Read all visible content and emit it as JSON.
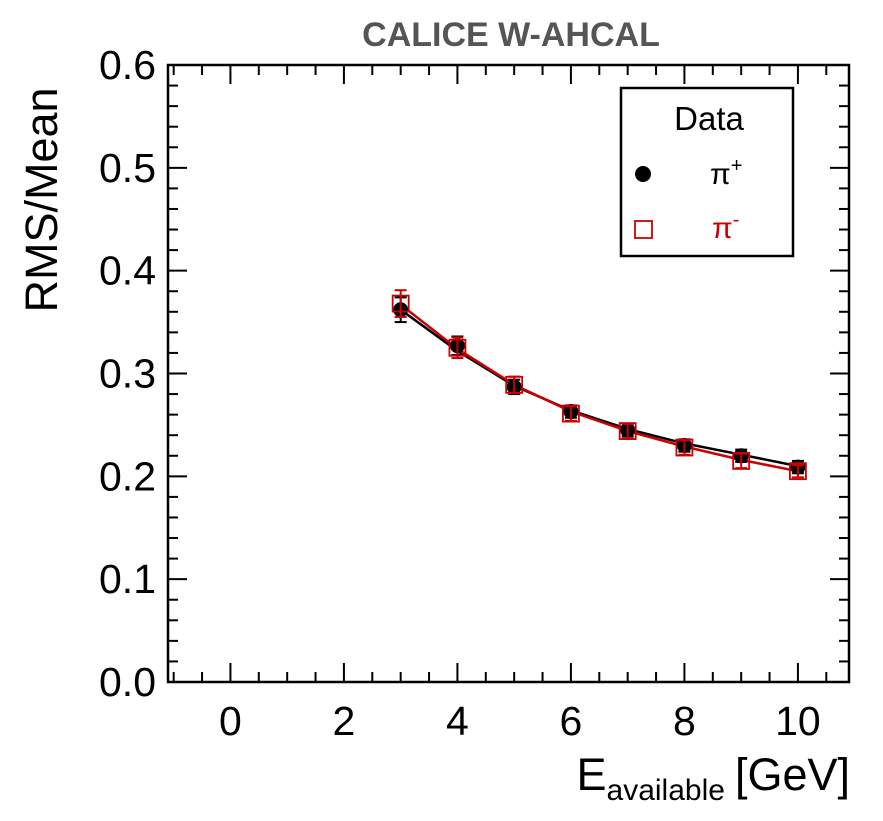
{
  "chart_data": {
    "type": "scatter",
    "title": "CALICE W-AHCAL",
    "ylabel": "RMS/Mean",
    "xlabel": {
      "main": "E",
      "subscript": "available",
      "unit": "[GeV]"
    },
    "xlim": [
      -1.1,
      10.9
    ],
    "ylim": [
      0.0,
      0.6
    ],
    "xticks": [
      "0",
      "2",
      "4",
      "6",
      "8",
      "10"
    ],
    "xtick_values": [
      0,
      2,
      4,
      6,
      8,
      10
    ],
    "yticks": [
      "0.0",
      "0.1",
      "0.2",
      "0.3",
      "0.4",
      "0.5",
      "0.6"
    ],
    "ytick_values": [
      0.0,
      0.1,
      0.2,
      0.3,
      0.4,
      0.5,
      0.6
    ],
    "legend": {
      "title": "Data",
      "placement": "top-right"
    },
    "series": [
      {
        "name": "π",
        "name_sup": "+",
        "marker": "filled-circle",
        "color": "#000000",
        "x": [
          3,
          4,
          5,
          6,
          7,
          8,
          9,
          10
        ],
        "y": [
          0.362,
          0.327,
          0.287,
          0.263,
          0.245,
          0.23,
          0.22,
          0.209
        ],
        "yerr": [
          0.012,
          0.009,
          0.007,
          0.006,
          0.006,
          0.006,
          0.006,
          0.006
        ],
        "fit": [
          0.362,
          0.322,
          0.288,
          0.264,
          0.246,
          0.232,
          0.221,
          0.21
        ]
      },
      {
        "name": "π",
        "name_sup": "-",
        "marker": "open-square",
        "color": "#cc0000",
        "x": [
          3,
          4,
          5,
          6,
          7,
          8,
          9,
          10
        ],
        "y": [
          0.368,
          0.325,
          0.289,
          0.261,
          0.244,
          0.228,
          0.215,
          0.205
        ],
        "yerr": [
          0.013,
          0.01,
          0.008,
          0.007,
          0.007,
          0.007,
          0.007,
          0.006
        ],
        "fit": [
          0.367,
          0.324,
          0.289,
          0.263,
          0.244,
          0.229,
          0.216,
          0.205
        ]
      }
    ]
  }
}
